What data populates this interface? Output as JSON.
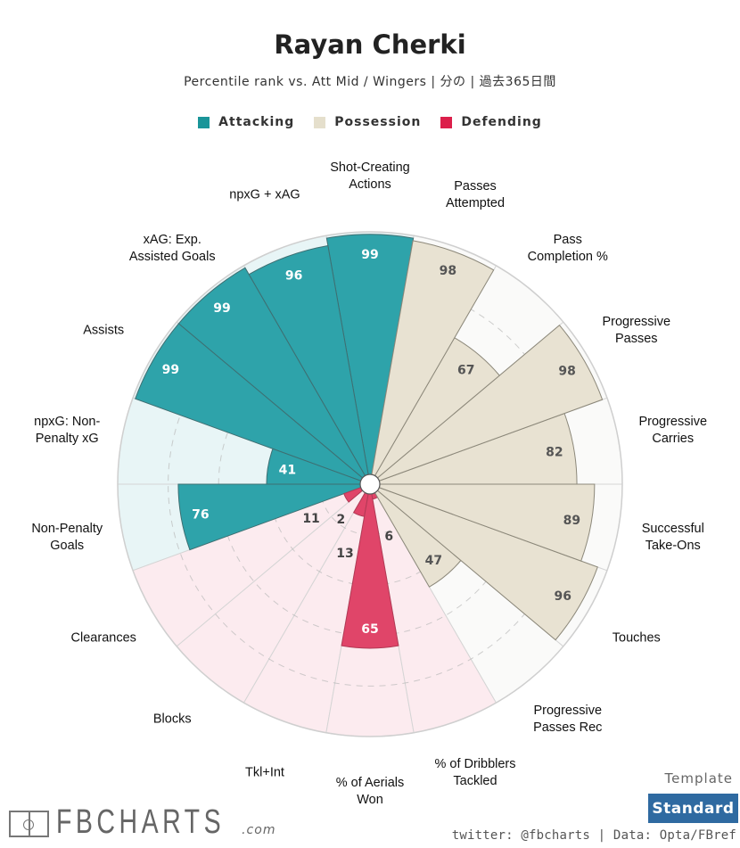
{
  "header": {
    "title": "Rayan Cherki",
    "subtitle": "Percentile rank vs. Att Mid / Wingers | 分の | 過去365日間"
  },
  "legend": [
    {
      "label": "Attacking",
      "color": "#2ea3aa"
    },
    {
      "label": "Possession",
      "color": "#e8e2d2"
    },
    {
      "label": "Defending",
      "color": "#e04569"
    }
  ],
  "chart_data": {
    "type": "polar-bar",
    "title": "Rayan Cherki",
    "range": [
      0,
      100
    ],
    "gridlines": [
      20,
      40,
      60,
      80,
      100
    ],
    "colors": {
      "Attacking": {
        "bar": "#2ea3aa",
        "bg": "#e8f5f6",
        "text": "#ffffff"
      },
      "Possession": {
        "bar": "#e8e2d2",
        "bg": "#fafaf9",
        "text": "#555555"
      },
      "Defending": {
        "bar": "#e04569",
        "bg": "#fcebef",
        "text": "#ffffff"
      }
    },
    "categories": [
      {
        "label": "Shot-Creating\nActions",
        "group": "Attacking",
        "value": 99
      },
      {
        "label": "npxG + xAG",
        "group": "Attacking",
        "value": 96
      },
      {
        "label": "xAG: Exp.\nAssisted Goals",
        "group": "Attacking",
        "value": 99
      },
      {
        "label": "Assists",
        "group": "Attacking",
        "value": 99
      },
      {
        "label": "npxG: Non-\nPenalty xG",
        "group": "Attacking",
        "value": 41
      },
      {
        "label": "Non-Penalty\nGoals",
        "group": "Attacking",
        "value": 76
      },
      {
        "label": "Clearances",
        "group": "Defending",
        "value": 11
      },
      {
        "label": "Blocks",
        "group": "Defending",
        "value": 2
      },
      {
        "label": "Tkl+Int",
        "group": "Defending",
        "value": 13
      },
      {
        "label": "% of Aerials\nWon",
        "group": "Defending",
        "value": 65
      },
      {
        "label": "% of Dribblers\nTackled",
        "group": "Defending",
        "value": 6
      },
      {
        "label": "Progressive\nPasses Rec",
        "group": "Possession",
        "value": 47
      },
      {
        "label": "Touches",
        "group": "Possession",
        "value": 96
      },
      {
        "label": "Successful\nTake-Ons",
        "group": "Possession",
        "value": 89
      },
      {
        "label": "Progressive\nCarries",
        "group": "Possession",
        "value": 82
      },
      {
        "label": "Progressive\nPasses",
        "group": "Possession",
        "value": 98
      },
      {
        "label": "Pass\nCompletion %",
        "group": "Possession",
        "value": 67
      },
      {
        "label": "Passes\nAttempted",
        "group": "Possession",
        "value": 98
      }
    ]
  },
  "template": {
    "label": "Template",
    "button": "Standard"
  },
  "footer": {
    "credit": "twitter: @fbcharts | Data: Opta/FBref"
  },
  "logo": {
    "text": "FBCHARTS",
    "domain": ".com"
  }
}
